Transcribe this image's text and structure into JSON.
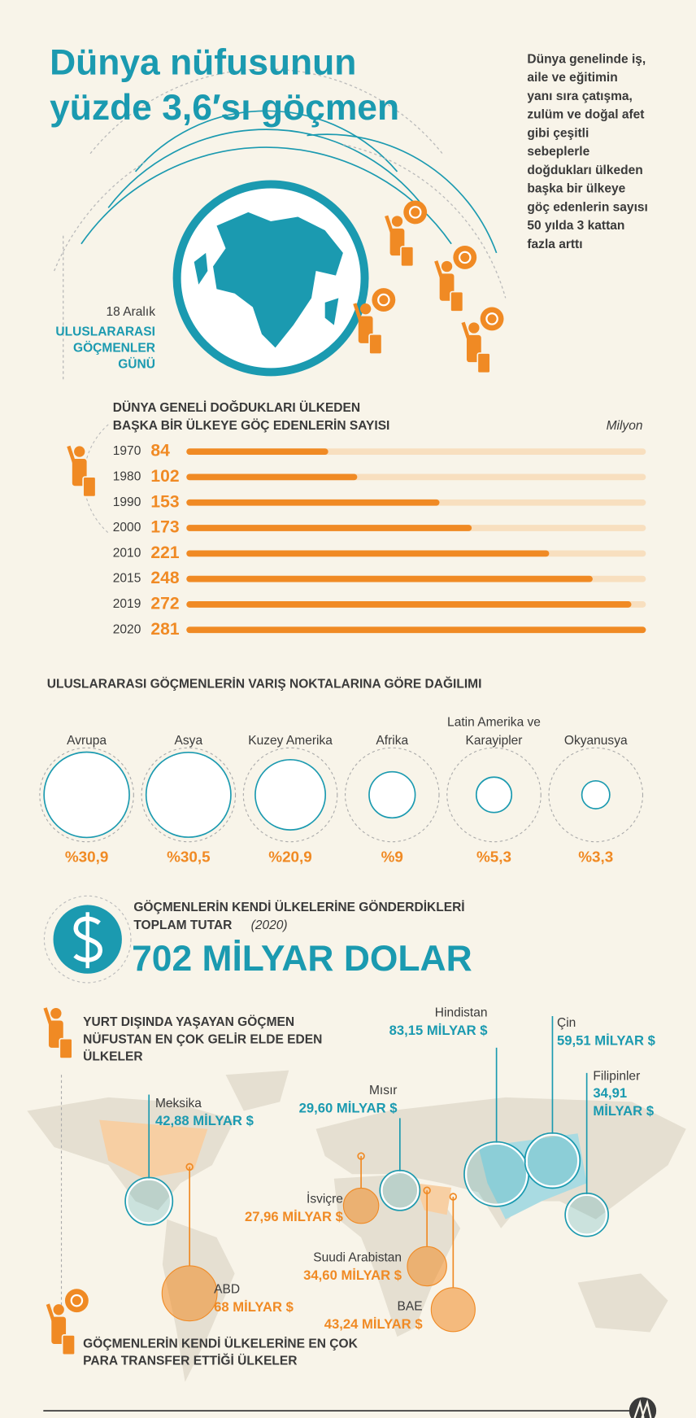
{
  "header": {
    "title_lines": [
      "Dünya nüfusunun",
      "yüzde 3,6′sı göçmen"
    ],
    "intro": [
      "Dünya genelinde iş,",
      "aile ve eğitimin",
      "yanı sıra çatışma,",
      "zulüm ve doğal afet",
      "gibi çeşitli",
      "sebeplerle",
      "doğdukları ülkeden",
      "başka bir ülkeye",
      "göç edenlerin sayısı",
      "50 yılda 3 kattan",
      "fazla arttı"
    ],
    "date": "18 Aralık",
    "day_name": [
      "ULUSLARARASI",
      "GÖÇMENLER",
      "GÜNÜ"
    ]
  },
  "remittance": {
    "title_lines": [
      "GÖÇMENLERİN KENDİ ÜLKELERİNE GÖNDERDİKLERİ",
      "TOPLAM TUTAR"
    ],
    "year": "(2020)",
    "amount": "702 MİLYAR DOLAR"
  },
  "chart_data": [
    {
      "type": "bar",
      "title": [
        "DÜNYA GENELİ DOĞDUKLARI ÜLKEDEN",
        "BAŞKA BİR ÜLKEYE GÖÇ EDENLERİN SAYISI"
      ],
      "unit": "Milyon",
      "categories": [
        "1970",
        "1980",
        "1990",
        "2000",
        "2010",
        "2015",
        "2019",
        "2020"
      ],
      "values": [
        84,
        102,
        153,
        173,
        221,
        248,
        272,
        281
      ],
      "color": "#f08a24",
      "track_color": "#f8dfbf",
      "xlim": [
        0,
        281
      ]
    },
    {
      "type": "circle-share",
      "title": "ULUSLARARASI GÖÇMENLERİN VARIŞ NOKTALARINA GÖRE DAĞILIMI",
      "categories": [
        "Avrupa",
        "Asya",
        "Kuzey Amerika",
        "Afrika",
        "Latin Amerika ve Karayipler",
        "Okyanusya"
      ],
      "values": [
        30.9,
        30.5,
        20.9,
        9,
        5.3,
        3.3
      ],
      "value_labels": [
        "%30,9",
        "%30,5",
        "%20,9",
        "%9",
        "%5,3",
        "%3,3"
      ],
      "color": "#1b9ab0",
      "label_color": "#f08a24"
    },
    {
      "type": "bubble-map",
      "series": [
        {
          "name": "YURT DIŞINDA YAŞAYAN GÖÇMEN NÜFUSTAN EN ÇOK GELİR ELDE EDEN ÜLKELER",
          "color": "#1b9ab0",
          "categories": [
            "Hindistan",
            "Çin",
            "Meksika",
            "Filipinler",
            "Mısır"
          ],
          "values": [
            83.15,
            59.51,
            42.88,
            34.91,
            29.6
          ],
          "value_labels": [
            "83,15 MİLYAR $",
            "59,51 MİLYAR $",
            "42,88 MİLYAR $",
            "34,91 MİLYAR $",
            "29,60 MİLYAR $"
          ]
        },
        {
          "name": "GÖÇMENLERİN KENDİ ÜLKELERİNE EN ÇOK PARA TRANSFER ETTİĞİ ÜLKELER",
          "color": "#f08a24",
          "categories": [
            "ABD",
            "Suudi Arabistan",
            "BAE",
            "İsviçre"
          ],
          "values": [
            68,
            34.6,
            43.24,
            27.96
          ],
          "value_labels": [
            "68 MİLYAR $",
            "34,60 MİLYAR $",
            "43,24 MİLYAR $",
            "27,96 MİLYAR $"
          ]
        }
      ]
    }
  ]
}
